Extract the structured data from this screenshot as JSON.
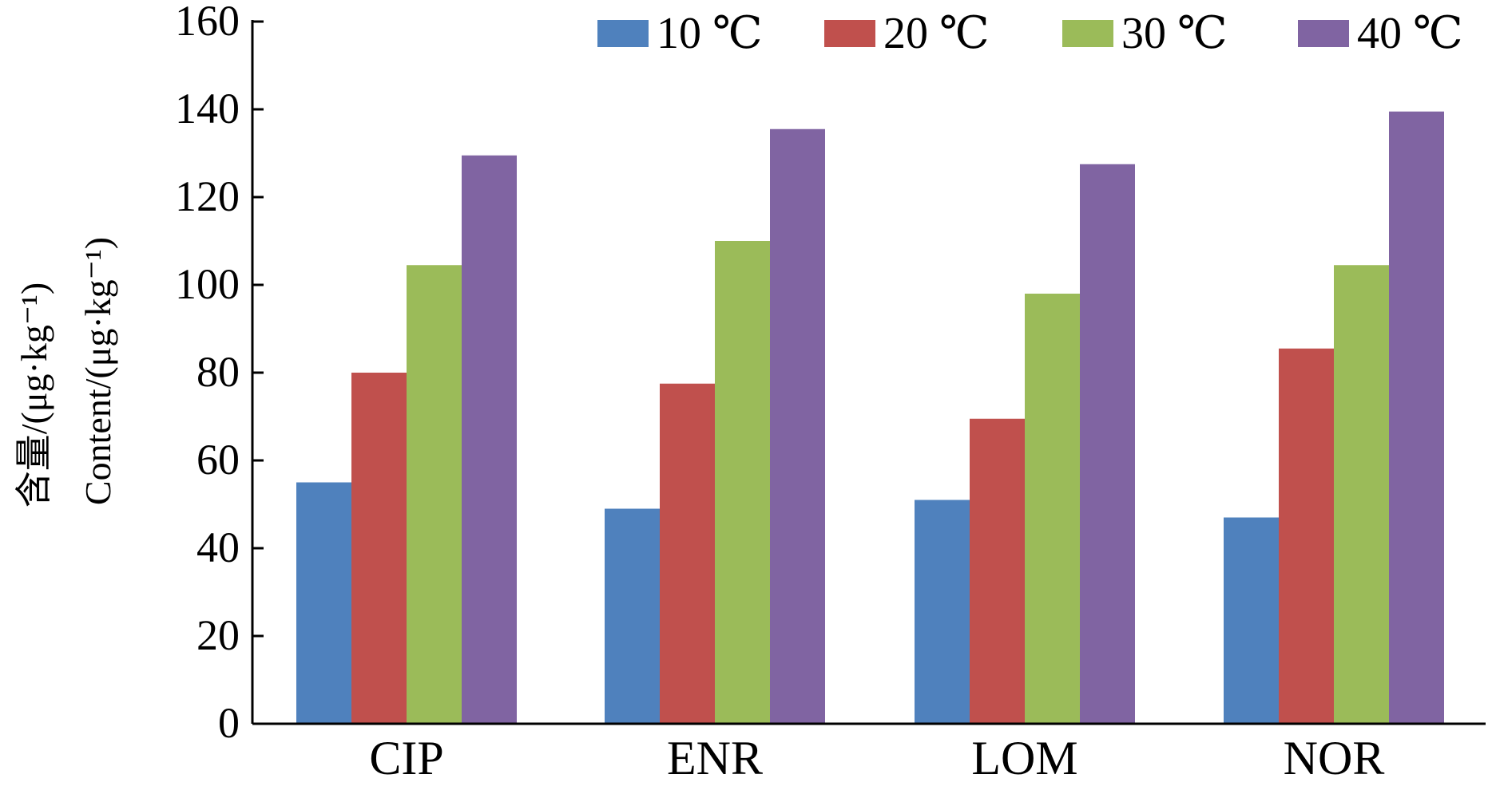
{
  "chart_data": {
    "type": "bar",
    "title": "",
    "categories": [
      "CIP",
      "ENR",
      "LOM",
      "NOR"
    ],
    "series": [
      {
        "name": "10 ℃",
        "color": "#4f81bd",
        "values": [
          55,
          49,
          51,
          47
        ]
      },
      {
        "name": "20 ℃",
        "color": "#c0504d",
        "values": [
          80,
          77.5,
          69.5,
          85.5
        ]
      },
      {
        "name": "30 ℃",
        "color": "#9bbb59",
        "values": [
          104.5,
          110,
          98,
          104.5
        ]
      },
      {
        "name": "40 ℃",
        "color": "#8064a2",
        "values": [
          129.5,
          135.5,
          127.5,
          139.5
        ]
      }
    ],
    "ylim": [
      0,
      160
    ],
    "yticks": [
      0,
      20,
      40,
      60,
      80,
      100,
      120,
      140,
      160
    ],
    "ylabel": {
      "line1": "含量/(μg·kg⁻¹)",
      "line2": "Content/(μg·kg⁻¹)"
    },
    "xlabel": "",
    "grid": false,
    "legend_position": "top"
  }
}
